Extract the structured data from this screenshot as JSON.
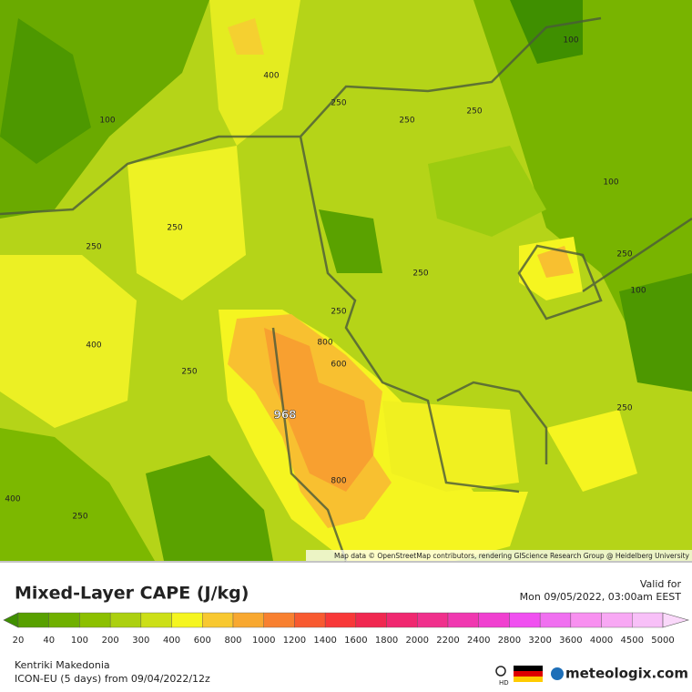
{
  "map": {
    "attribution": "Map data © OpenStreetMap contributors, rendering GIScience Research Group @ Heidelberg University",
    "contour_labels": [
      "100",
      "400",
      "250",
      "250",
      "250",
      "100",
      "100",
      "250",
      "250",
      "250",
      "250",
      "100",
      "250",
      "400",
      "800",
      "600",
      "250",
      "250",
      "968",
      "800",
      "400",
      "250"
    ]
  },
  "legend": {
    "title": "Mixed-Layer CAPE (J/kg)",
    "valid_label": "Valid for",
    "valid_time": "Mon 09/05/2022, 03:00am EEST",
    "ticks": [
      20,
      40,
      100,
      200,
      300,
      400,
      600,
      800,
      1000,
      1200,
      1400,
      1600,
      1800,
      2000,
      2200,
      2400,
      2800,
      3200,
      3600,
      4000,
      4500,
      5000
    ],
    "colors": [
      "#3f8f00",
      "#58a000",
      "#70b000",
      "#8cc000",
      "#acd010",
      "#ccdf18",
      "#f5f520",
      "#f8c830",
      "#f8a830",
      "#f88030",
      "#f85a30",
      "#f83838",
      "#f02850",
      "#f02870",
      "#f0308c",
      "#f038b0",
      "#f040d0",
      "#f050f0",
      "#f070f0",
      "#f890f0",
      "#f8a8f4",
      "#f8c0f8",
      "#fad8fa"
    ],
    "region": "Kentriki Makedonia",
    "model": "ICON-EU (5 days) from 09/04/2022/12z",
    "brand": "meteologix.com",
    "hd": "HD"
  }
}
